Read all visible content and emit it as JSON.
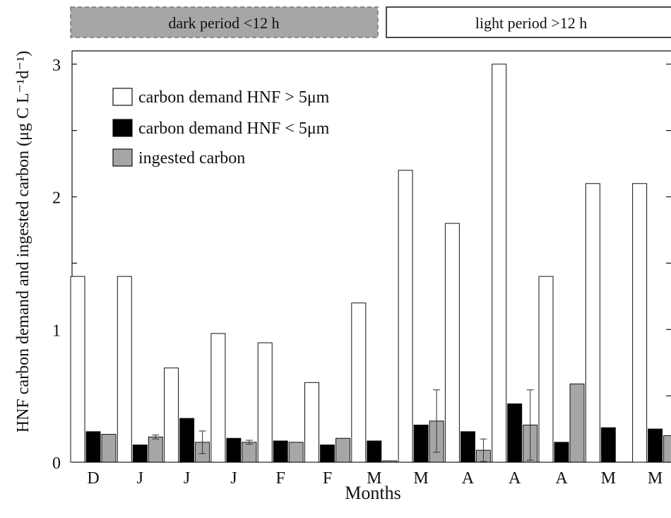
{
  "colors": {
    "white_bar": "#ffffff",
    "black_bar": "#000000",
    "gray_bar": "#a6a6a6",
    "dark_banner": "#a6a6a6",
    "light_banner": "#ffffff"
  },
  "banners": {
    "dark": "dark period <12 h",
    "light": "light period >12 h"
  },
  "chart_data": {
    "type": "bar",
    "xlabel": "Months",
    "ylabel": "HNF carbon demand and ingested carbon (μg C L⁻¹d⁻¹)",
    "ylim": [
      0,
      3.1
    ],
    "yticks": [
      0,
      1,
      2,
      3
    ],
    "categories": [
      "D",
      "J",
      "J",
      "J",
      "F",
      "F",
      "M",
      "M",
      "A",
      "A",
      "A",
      "M",
      "M"
    ],
    "legend_position": "top-left",
    "series": [
      {
        "name": "carbon demand HNF > 5μm",
        "color": "#ffffff",
        "values": [
          1.4,
          1.4,
          0.71,
          0.97,
          0.9,
          0.6,
          1.2,
          2.2,
          1.8,
          3.0,
          1.4,
          2.1,
          2.1
        ]
      },
      {
        "name": "carbon demand HNF < 5μm",
        "color": "#000000",
        "values": [
          0.23,
          0.13,
          0.33,
          0.18,
          0.16,
          0.13,
          0.16,
          0.28,
          0.23,
          0.44,
          0.15,
          0.26,
          0.25
        ]
      },
      {
        "name": "ingested carbon",
        "color": "#a6a6a6",
        "values": [
          0.21,
          0.19,
          0.15,
          0.15,
          0.15,
          0.18,
          0.01,
          0.31,
          0.09,
          0.28,
          0.59,
          0.0,
          0.2
        ],
        "errors": [
          null,
          0.015,
          0.085,
          0.015,
          null,
          null,
          null,
          0.235,
          0.085,
          0.265,
          null,
          null,
          null
        ]
      }
    ]
  }
}
